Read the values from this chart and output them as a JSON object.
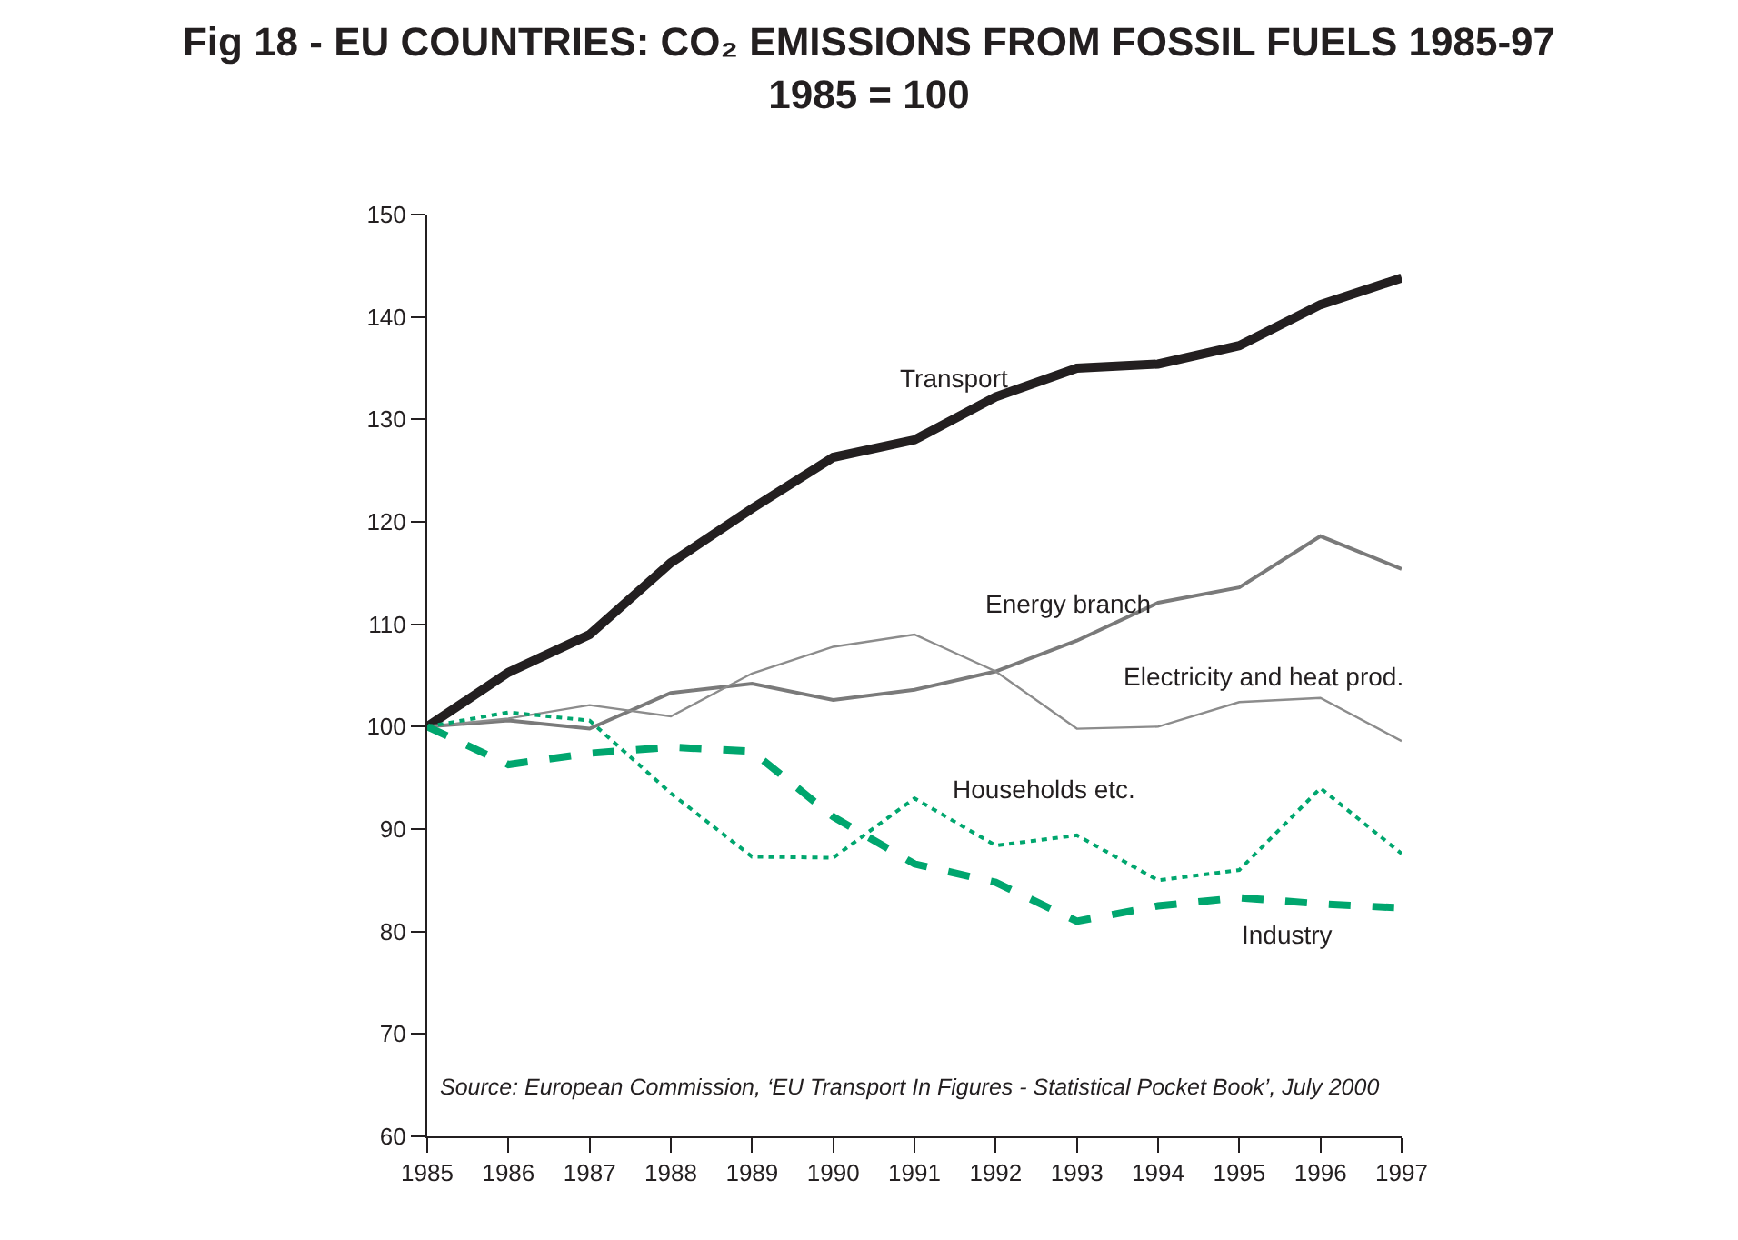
{
  "chart_data": {
    "type": "line",
    "title": "Fig 18 - EU COUNTRIES: CO₂ EMISSIONS FROM FOSSIL FUELS 1985-97",
    "subtitle": "1985 = 100",
    "x": [
      1985,
      1986,
      1987,
      1988,
      1989,
      1990,
      1991,
      1992,
      1993,
      1994,
      1995,
      1996,
      1997
    ],
    "series": [
      {
        "name": "Transport",
        "color": "#231f20",
        "line_style": "solid",
        "values": [
          100,
          105.3,
          109,
          116,
          121.3,
          126.3,
          128,
          132.2,
          135,
          135.4,
          137.2,
          141.2,
          143.8
        ]
      },
      {
        "name": "Energy branch",
        "color": "#7a7a7a",
        "line_style": "solid",
        "values": [
          100,
          100.6,
          99.8,
          103.3,
          104.2,
          102.6,
          103.6,
          105.4,
          108.4,
          112.1,
          113.6,
          118.6,
          115.4
        ]
      },
      {
        "name": "Electricity and heat prod.",
        "color": "#8c8c8c",
        "line_style": "solid",
        "values": [
          100,
          100.8,
          102.1,
          101,
          105.2,
          107.8,
          109,
          105.4,
          99.8,
          100,
          102.4,
          102.8,
          98.6
        ]
      },
      {
        "name": "Households etc.",
        "color": "#00a66e",
        "line_style": "dotted",
        "values": [
          100,
          101.4,
          100.6,
          93.5,
          87.3,
          87.2,
          93,
          88.4,
          89.4,
          85,
          86,
          94,
          87.6
        ]
      },
      {
        "name": "Industry",
        "color": "#00a66e",
        "line_style": "dashed",
        "values": [
          100,
          96.3,
          97.4,
          98,
          97.6,
          91.2,
          86.6,
          84.8,
          81,
          82.5,
          83.3,
          82.7,
          82.3
        ]
      }
    ],
    "xlim": [
      1985,
      1997
    ],
    "xticks": [
      1985,
      1986,
      1987,
      1988,
      1989,
      1990,
      1991,
      1992,
      1993,
      1994,
      1995,
      1996,
      1997
    ],
    "ylim": [
      60,
      150
    ],
    "yticks": [
      60,
      70,
      80,
      90,
      100,
      110,
      120,
      130,
      140,
      150
    ],
    "annotations": [
      "Source: European Commission, ‘EU Transport In Figures - Statistical Pocket Book’, July 2000"
    ],
    "legend": false,
    "marker": "none"
  }
}
